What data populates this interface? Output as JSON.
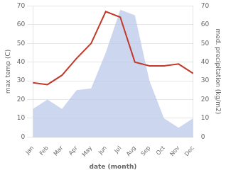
{
  "chart_data": {
    "type": "line",
    "categories": [
      "Jan",
      "Feb",
      "Mar",
      "Apr",
      "May",
      "Jun",
      "Jul",
      "Aug",
      "Sep",
      "Oct",
      "Nov",
      "Dec"
    ],
    "series": [
      {
        "type": "area",
        "axis": "y2",
        "color": "#b8c4e8",
        "values": [
          15,
          20,
          15,
          25,
          26,
          45,
          68,
          65,
          30,
          10,
          5,
          10
        ]
      },
      {
        "type": "line",
        "color": "#c0392b",
        "values": [
          29,
          28,
          33,
          42,
          50,
          67,
          64,
          40,
          38,
          38,
          39,
          34
        ]
      }
    ],
    "xlabel": "date (month)",
    "ylabel": "max temp (C)",
    "y2label": "med. precipitation (kg/m2)",
    "ylim": [
      0,
      70
    ],
    "yticks": [
      0,
      10,
      20,
      30,
      40,
      50,
      60,
      70
    ],
    "y2lim": [
      0,
      70
    ],
    "y2ticks": [
      0,
      10,
      20,
      30,
      40,
      50,
      60,
      70
    ],
    "grid": true
  }
}
